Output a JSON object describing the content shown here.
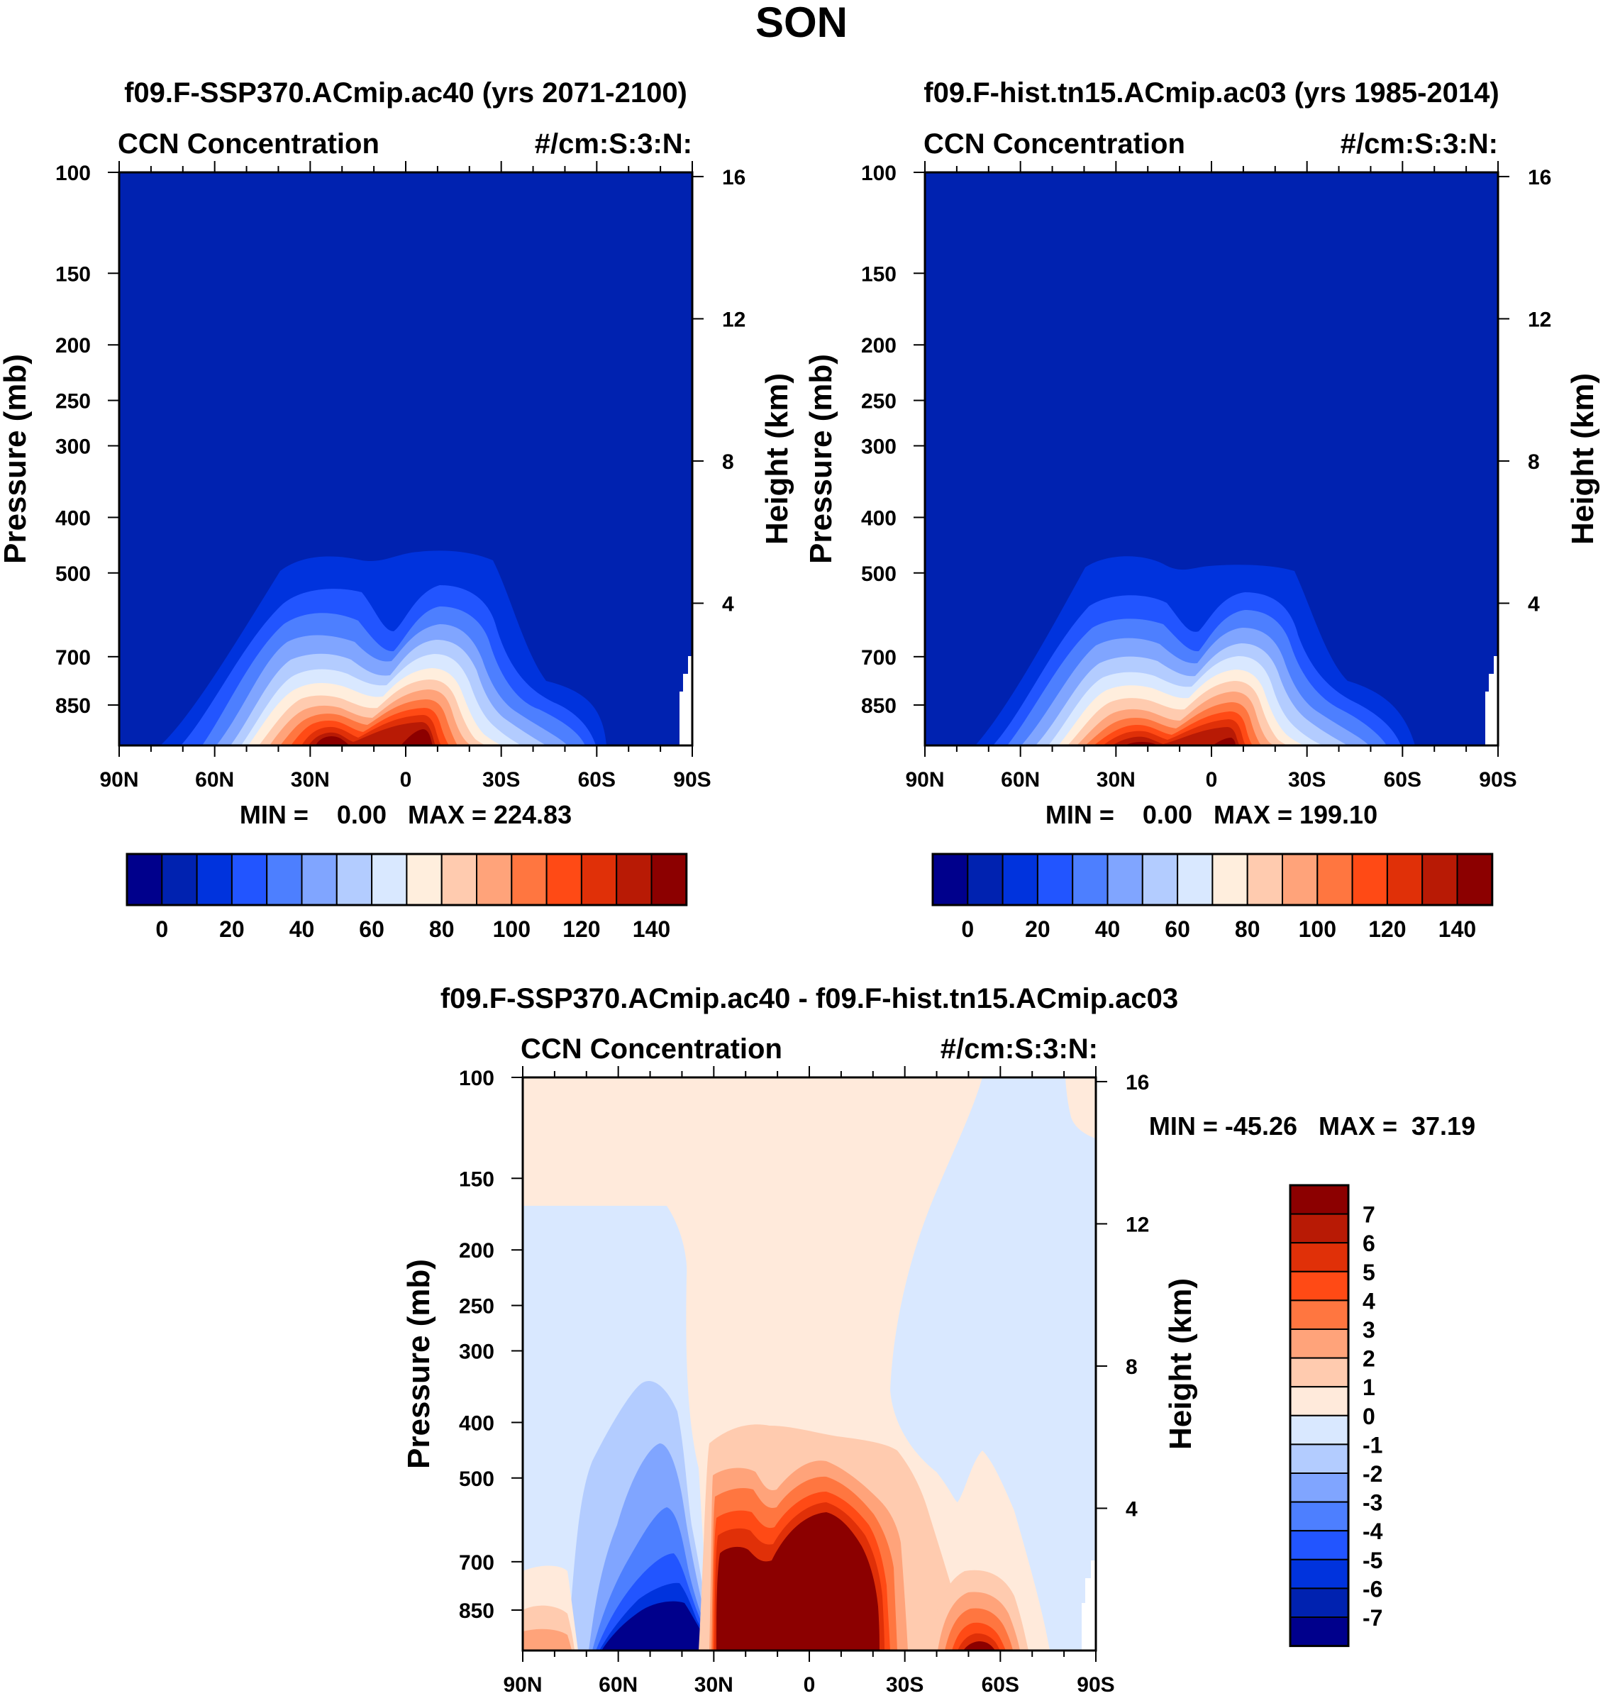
{
  "figure": {
    "title": "SON"
  },
  "colors": {
    "ccn_scale": [
      "#00008c",
      "#0022b0",
      "#0033dd",
      "#2255ff",
      "#4d7fff",
      "#80a5ff",
      "#b3ccff",
      "#d9e8ff",
      "#ffeedd",
      "#ffcbaf",
      "#ffa37a",
      "#ff7640",
      "#ff4a15",
      "#e03008",
      "#b81a05",
      "#8c0000"
    ],
    "diff_scale": [
      "#00008c",
      "#0022b0",
      "#0033dd",
      "#2255ff",
      "#4d7fff",
      "#80a5ff",
      "#b3ccff",
      "#d9e8ff",
      "#ffeadb",
      "#ffcbaf",
      "#ffa37a",
      "#ff7640",
      "#ff4a15",
      "#e03008",
      "#b81a05",
      "#8c0000"
    ]
  },
  "chart_data": [
    {
      "id": "panel1",
      "type": "heatmap",
      "title": "f09.F-SSP370.ACmip.ac40 (yrs 2071-2100)",
      "left_label": "CCN Concentration",
      "right_label": "#/cm:S:3:N:",
      "ylabel": "Pressure (mb)",
      "y2label": "Height (km)",
      "xticks": [
        "90N",
        "60N",
        "30N",
        "0",
        "30S",
        "60S",
        "90S"
      ],
      "yticks": [
        "100",
        "150",
        "200",
        "250",
        "300",
        "400",
        "500",
        "700",
        "850"
      ],
      "y2ticks": [
        "16",
        "12",
        "8",
        "4"
      ],
      "stats": "MIN =    0.00   MAX = 224.83",
      "min": 0.0,
      "max": 224.83,
      "colorbar_labels": [
        "0",
        "20",
        "40",
        "60",
        "80",
        "100",
        "120",
        "140"
      ],
      "levels": [
        0,
        10,
        20,
        30,
        40,
        50,
        60,
        70,
        80,
        90,
        100,
        110,
        120,
        130,
        140
      ]
    },
    {
      "id": "panel2",
      "type": "heatmap",
      "title": "f09.F-hist.tn15.ACmip.ac03 (yrs 1985-2014)",
      "left_label": "CCN Concentration",
      "right_label": "#/cm:S:3:N:",
      "ylabel": "Pressure (mb)",
      "y2label": "Height (km)",
      "xticks": [
        "90N",
        "60N",
        "30N",
        "0",
        "30S",
        "60S",
        "90S"
      ],
      "yticks": [
        "100",
        "150",
        "200",
        "250",
        "300",
        "400",
        "500",
        "700",
        "850"
      ],
      "y2ticks": [
        "16",
        "12",
        "8",
        "4"
      ],
      "stats": "MIN =    0.00   MAX = 199.10",
      "min": 0.0,
      "max": 199.1,
      "colorbar_labels": [
        "0",
        "20",
        "40",
        "60",
        "80",
        "100",
        "120",
        "140"
      ],
      "levels": [
        0,
        10,
        20,
        30,
        40,
        50,
        60,
        70,
        80,
        90,
        100,
        110,
        120,
        130,
        140
      ]
    },
    {
      "id": "panel3",
      "type": "heatmap",
      "title": "f09.F-SSP370.ACmip.ac40 - f09.F-hist.tn15.ACmip.ac03",
      "left_label": "CCN Concentration",
      "right_label": "#/cm:S:3:N:",
      "ylabel": "Pressure (mb)",
      "y2label": "Height (km)",
      "xticks": [
        "90N",
        "60N",
        "30N",
        "0",
        "30S",
        "60S",
        "90S"
      ],
      "yticks": [
        "100",
        "150",
        "200",
        "250",
        "300",
        "400",
        "500",
        "700",
        "850"
      ],
      "y2ticks": [
        "16",
        "12",
        "8",
        "4"
      ],
      "stats": "MIN = -45.26   MAX =  37.19",
      "min": -45.26,
      "max": 37.19,
      "colorbar_labels": [
        "7",
        "6",
        "5",
        "4",
        "3",
        "2",
        "1",
        "0",
        "-1",
        "-2",
        "-3",
        "-4",
        "-5",
        "-6",
        "-7"
      ],
      "levels": [
        -7,
        -6,
        -5,
        -4,
        -3,
        -2,
        -1,
        0,
        1,
        2,
        3,
        4,
        5,
        6,
        7
      ]
    }
  ]
}
